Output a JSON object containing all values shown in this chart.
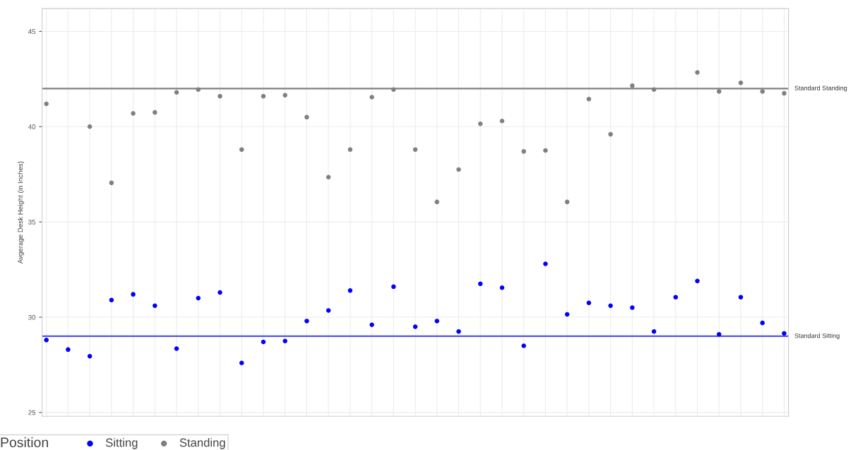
{
  "chart_data": {
    "type": "scatter",
    "ylabel": "Avgerage Desk Height (in Inches)",
    "legend_title": "Position",
    "categories": [
      null,
      null,
      null,
      null,
      null,
      null,
      null,
      null,
      null,
      null,
      null,
      null,
      null,
      null,
      null,
      null,
      null,
      null,
      null,
      null,
      null,
      null,
      null,
      null,
      null,
      null,
      null,
      null,
      null,
      null,
      null,
      null,
      null,
      null,
      null
    ],
    "series": [
      {
        "name": "Sitting",
        "color": "#0000ff",
        "values": [
          28.8,
          28.3,
          27.95,
          30.9,
          31.2,
          30.6,
          28.35,
          31.0,
          31.3,
          27.6,
          28.7,
          28.75,
          29.8,
          30.35,
          31.4,
          29.6,
          31.6,
          29.5,
          29.8,
          29.25,
          31.75,
          31.55,
          28.5,
          32.8,
          30.15,
          30.75,
          30.6,
          30.5,
          29.25,
          31.05,
          31.9,
          29.1,
          31.05,
          29.7,
          29.15
        ]
      },
      {
        "name": "Standing",
        "color": "#808080",
        "values": [
          41.2,
          null,
          40.0,
          37.05,
          40.7,
          40.75,
          41.8,
          41.95,
          41.6,
          38.8,
          41.6,
          41.65,
          40.5,
          37.35,
          38.8,
          41.55,
          41.95,
          38.8,
          36.05,
          37.75,
          40.15,
          40.3,
          38.7,
          38.75,
          36.05,
          41.45,
          39.6,
          42.15,
          41.95,
          null,
          42.85,
          41.85,
          42.3,
          41.85,
          41.75
        ]
      }
    ],
    "ylim": [
      24.8,
      46.2
    ],
    "yticks": [
      25,
      30,
      35,
      40,
      45
    ],
    "ref_lines": [
      {
        "axis": "y",
        "value": 42,
        "label": "Standard Standing",
        "color": "#808080"
      },
      {
        "axis": "y",
        "value": 29,
        "label": "Standard Sitting",
        "color": "#5555ee"
      }
    ],
    "grid": true,
    "legend": "bottom",
    "marker": "circle",
    "tick_labels": "y"
  }
}
